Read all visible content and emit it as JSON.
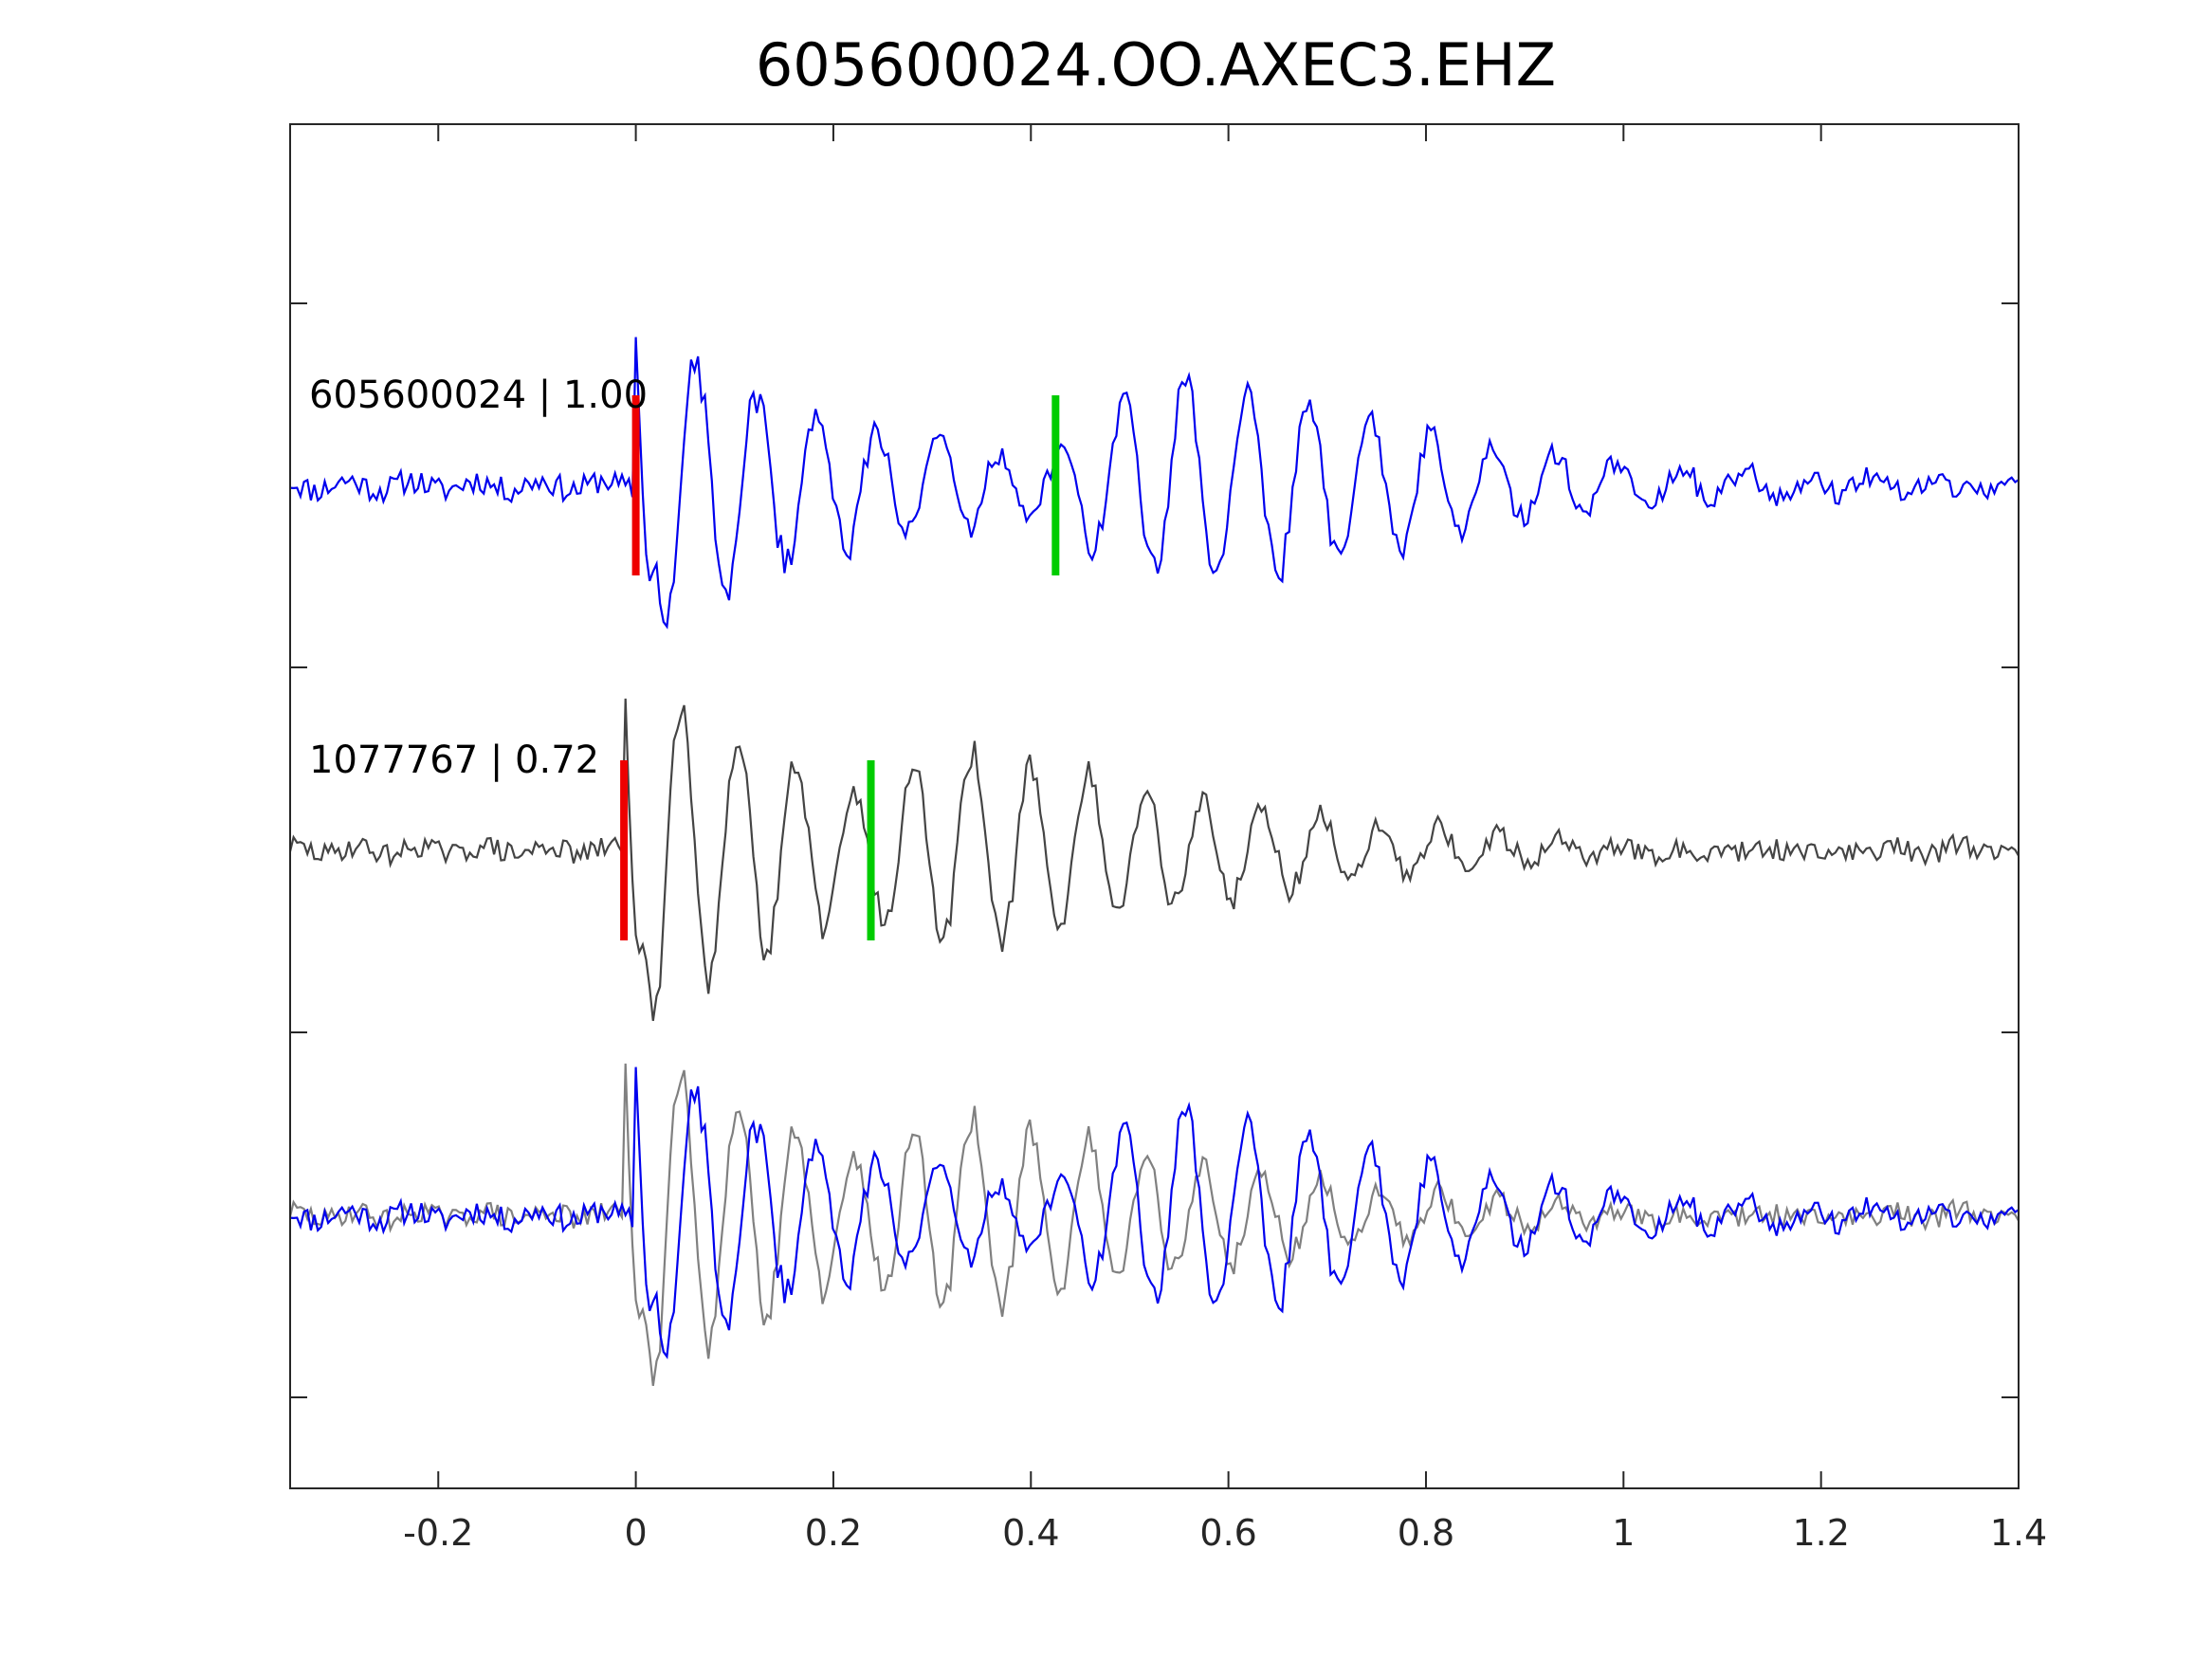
{
  "chart_data": {
    "type": "line",
    "title": "605600024.OO.AXEC3.EHZ",
    "xlabel": "",
    "ylabel": "",
    "xlim": [
      -0.35,
      1.4
    ],
    "x_ticks": [
      -0.2,
      0,
      0.2,
      0.4,
      0.6,
      0.8,
      1,
      1.2,
      1.4
    ],
    "x_tick_labels": [
      "-0.2",
      "0",
      "0.2",
      "0.4",
      "0.6",
      "0.8",
      "1",
      "1.2",
      "1.4"
    ],
    "y_tick_labels_shown": false,
    "grid": false,
    "colors": {
      "master_trace": "#0000ee",
      "neighbor_trace": "#444444",
      "overlay_neighbor_trace": "#808080",
      "p_pick": "#ee0000",
      "s_pick": "#00cc00",
      "axes": "#262626"
    },
    "traces": [
      {
        "label": "605600024 | 1.00",
        "event_id": "605600024",
        "correlation": 1.0,
        "color_key": "master_trace",
        "p_pick_time": 0.0,
        "s_pick_time": 0.425
      },
      {
        "label": "1077767 | 0.72",
        "event_id": "1077767",
        "correlation": 0.72,
        "color_key": "neighbor_trace",
        "p_pick_time": -0.012,
        "s_pick_time": 0.238
      }
    ],
    "overlay": {
      "series": [
        "605600024",
        "1077767"
      ],
      "colors": [
        "master_trace",
        "overlay_neighbor_trace"
      ]
    }
  }
}
